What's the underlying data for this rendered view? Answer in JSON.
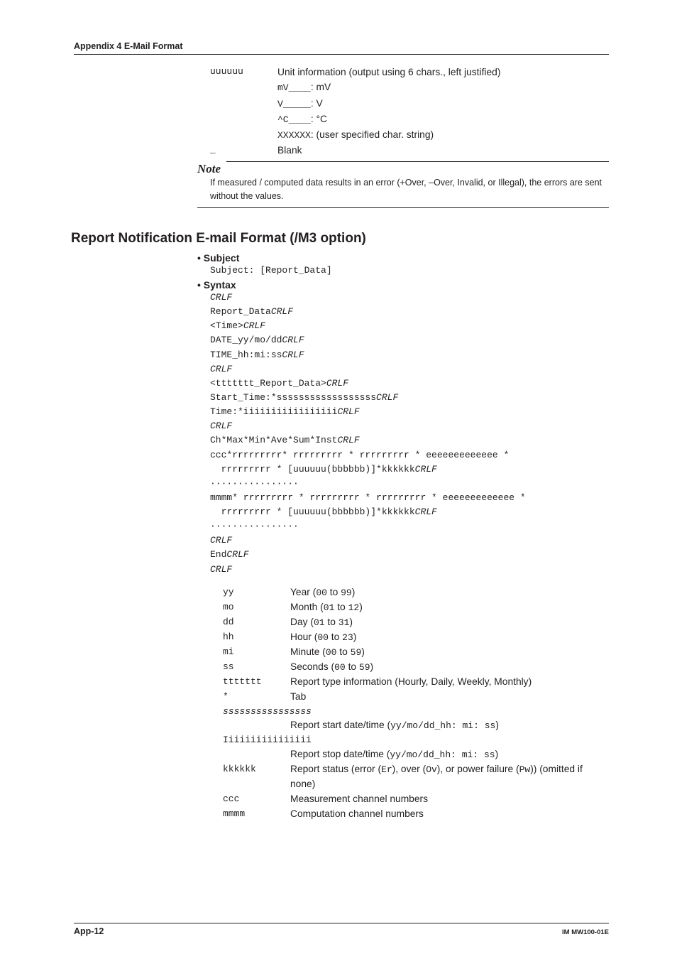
{
  "appendix_header": "Appendix 4  E-Mail Format",
  "top_block": {
    "rows": [
      {
        "code": "uuuuuu",
        "desc_pre": "Unit information (output using 6 chars., left justified)"
      }
    ],
    "sub_rows": [
      {
        "mono_pre": "mV____",
        "desc": ": mV"
      },
      {
        "mono_pre": "V_____",
        "desc": ": V"
      },
      {
        "mono_pre": "^C____",
        "desc": ": °C"
      },
      {
        "mono_pre": "XXXXXX",
        "desc": ": (user specified char. string)"
      }
    ],
    "blank_row": {
      "code": "_",
      "desc": "Blank"
    }
  },
  "note": {
    "label": "Note",
    "text": "If measured / computed data results in an error (+Over, –Over, Invalid, or Illegal), the errors are sent without the values."
  },
  "section_heading": "Report Notification E-mail Format (/M3 option)",
  "subject": {
    "label": "Subject",
    "line": "Subject: [Report_Data]"
  },
  "syntax": {
    "label": "Syntax",
    "body_html": "<span class=\"italic\">CRLF</span>\nReport_Data<span class=\"italic\">CRLF</span>\n&lt;Time&gt;<span class=\"italic\">CRLF</span>\nDATE_yy/mo/dd<span class=\"italic\">CRLF</span>\nTIME_hh:mi:ss<span class=\"italic\">CRLF</span>\n<span class=\"italic\">CRLF</span>\n&lt;ttttttt_Report_Data&gt;<span class=\"italic\">CRLF</span>\nStart_Time:*ssssssssssssssssss<span class=\"italic\">CRLF</span>\nTime:*iiiiiiiiiiiiiiiii<span class=\"italic\">CRLF</span>\n<span class=\"italic\">CRLF</span>\nCh*Max*Min*Ave*Sum*Inst<span class=\"italic\">CRLF</span>\nccc*rrrrrrrrr* rrrrrrrrr * rrrrrrrrr * eeeeeeeeeeeee *\n  rrrrrrrrr * [uuuuuu(bbbbbb)]*kkkkkk<span class=\"italic\">CRLF</span>\n················\nmmmm* rrrrrrrrr * rrrrrrrrr * rrrrrrrrr * eeeeeeeeeeeee *\n  rrrrrrrrr * [uuuuuu(bbbbbb)]*kkkkkk<span class=\"italic\">CRLF</span>\n················\n<span class=\"italic\">CRLF</span>\nEnd<span class=\"italic\">CRLF</span>\n<span class=\"italic\">CRLF</span>"
  },
  "defs": [
    {
      "code": "yy",
      "desc_html": "Year (<span class=\"mono\">00</span> to <span class=\"mono\">99</span>)"
    },
    {
      "code": "mo",
      "desc_html": "Month (<span class=\"mono\">01</span> to <span class=\"mono\">12</span>)"
    },
    {
      "code": "dd",
      "desc_html": "Day (<span class=\"mono\">01</span> to <span class=\"mono\">31</span>)"
    },
    {
      "code": "hh",
      "desc_html": "Hour (<span class=\"mono\">00</span> to <span class=\"mono\">23</span>)"
    },
    {
      "code": "mi",
      "desc_html": "Minute (<span class=\"mono\">00</span> to <span class=\"mono\">59</span>)"
    },
    {
      "code": "ss",
      "desc_html": "Seconds (<span class=\"mono\">00</span> to <span class=\"mono\">59</span>)"
    },
    {
      "code": "ttttttt",
      "desc_html": "Report type information (Hourly, Daily, Weekly, Monthly)"
    },
    {
      "code": "*",
      "desc_html": "Tab"
    },
    {
      "code_i": "ssssssssssssssss",
      "desc_html": ""
    },
    {
      "code": "",
      "desc_html": "Report start date/time (<span class=\"mono\">yy/mo/dd_hh: mi: ss</span>)"
    },
    {
      "code": "Iiiiiiiiiiiiiiii",
      "desc_html": ""
    },
    {
      "code": "",
      "desc_html": "Report stop date/time (<span class=\"mono\">yy/mo/dd_hh: mi: ss</span>)"
    },
    {
      "code": "kkkkkk",
      "desc_html": "Report status (error (<span class=\"mono\">Er</span>), over (<span class=\"mono\">Ov</span>), or power failure (<span class=\"mono\">Pw</span>)) (omitted if none)"
    },
    {
      "code": "ccc",
      "desc_html": "Measurement channel numbers"
    },
    {
      "code": "mmmm",
      "desc_html": "Computation channel numbers"
    }
  ],
  "footer": {
    "left": "App-12",
    "right": "IM MW100-01E"
  }
}
